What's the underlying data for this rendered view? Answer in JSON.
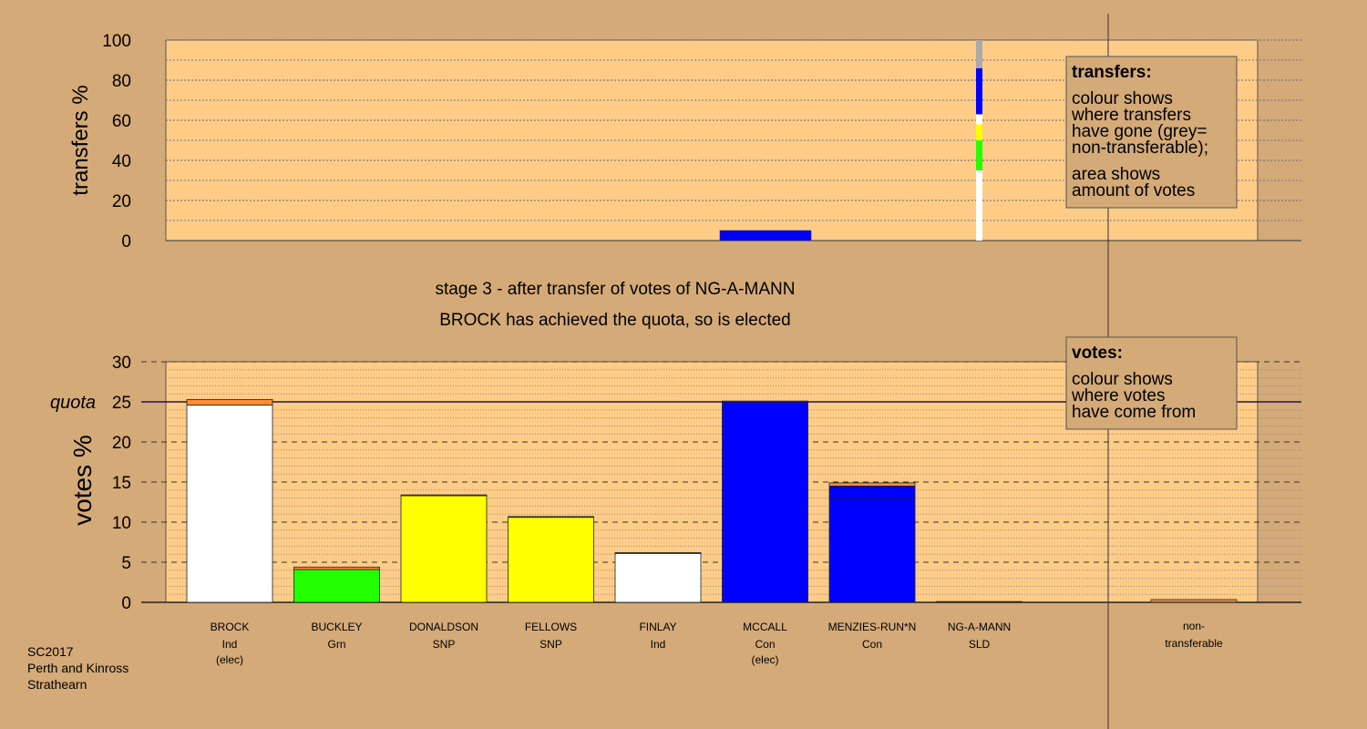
{
  "chart_data": [
    {
      "type": "bar",
      "ylabel": "transfers %",
      "yticks": [
        "0",
        "20",
        "40",
        "60",
        "80",
        "100"
      ],
      "ylim": [
        0,
        100
      ],
      "bars": [
        {
          "category": "MCCALL",
          "value": 5,
          "color": "#0000ff"
        },
        {
          "category": "NG-A-MANN",
          "stacked": true,
          "segments": [
            {
              "from": "BROCK",
              "value": 35,
              "color": "#ffffff"
            },
            {
              "from": "BUCKLEY",
              "value": 15,
              "color": "#22ff00"
            },
            {
              "from": "DONALDSON/FELLOWS",
              "value": 8,
              "color": "#ffff00"
            },
            {
              "from": "FINLAY",
              "value": 5,
              "color": "#ffffff"
            },
            {
              "from": "MENZIES-RUN*N",
              "value": 23,
              "color": "#0000ff"
            },
            {
              "from": "non-transferable",
              "value": 14,
              "color": "#aaaaaa"
            }
          ]
        }
      ],
      "legend": {
        "title": "transfers:",
        "lines1": [
          "colour shows",
          "where transfers",
          "have gone (grey=",
          "non-transferable);"
        ],
        "lines2": [
          "area shows",
          "amount of votes"
        ]
      }
    },
    {
      "type": "bar",
      "stage_line1": "stage 3 - after transfer of votes of NG-A-MANN",
      "stage_line2": "BROCK has achieved the quota, so is elected",
      "ylabel": "votes %",
      "yticks": [
        "0",
        "5",
        "10",
        "15",
        "20",
        "25",
        "30"
      ],
      "ylim": [
        0,
        30
      ],
      "quota": 25,
      "quota_label": "quota",
      "candidates": [
        {
          "name": "BROCK",
          "party": "Ind",
          "status": "(elec)",
          "base": 24.6,
          "transfer": 0.7,
          "color": "#ffffff"
        },
        {
          "name": "BUCKLEY",
          "party": "Grn",
          "status": "",
          "base": 4.1,
          "transfer": 0.3,
          "color": "#22ff00"
        },
        {
          "name": "DONALDSON",
          "party": "SNP",
          "status": "",
          "base": 13.3,
          "transfer": 0.1,
          "color": "#ffff00"
        },
        {
          "name": "FELLOWS",
          "party": "SNP",
          "status": "",
          "base": 10.6,
          "transfer": 0.1,
          "color": "#ffff00"
        },
        {
          "name": "FINLAY",
          "party": "Ind",
          "status": "",
          "base": 6.1,
          "transfer": 0.1,
          "color": "#ffffff"
        },
        {
          "name": "MCCALL",
          "party": "Con",
          "status": "(elec)",
          "base": 25.0,
          "transfer": 0.1,
          "color": "#0000ff"
        },
        {
          "name": "MENZIES-RUN*N",
          "party": "Con",
          "status": "",
          "base": 13.0,
          "extra": 1.5,
          "transfer": 0.4,
          "color": "#0000ff"
        },
        {
          "name": "NG-A-MANN",
          "party": "SLD",
          "status": "",
          "base": 0.1,
          "transfer": 0,
          "color": "#0000ff"
        }
      ],
      "nontransferable": {
        "label1": "non-",
        "label2": "transferable",
        "value": 0.35,
        "color": "#d4893f"
      },
      "legend": {
        "title": "votes:",
        "lines": [
          "colour shows",
          "where votes",
          "have come from"
        ]
      }
    }
  ],
  "footer": [
    "SC2017",
    "Perth and Kinross",
    "Strathearn"
  ],
  "colors": {
    "background": "#d4aa78",
    "plot": "#ffcc88",
    "transfer_accent": "#ff8c33"
  }
}
